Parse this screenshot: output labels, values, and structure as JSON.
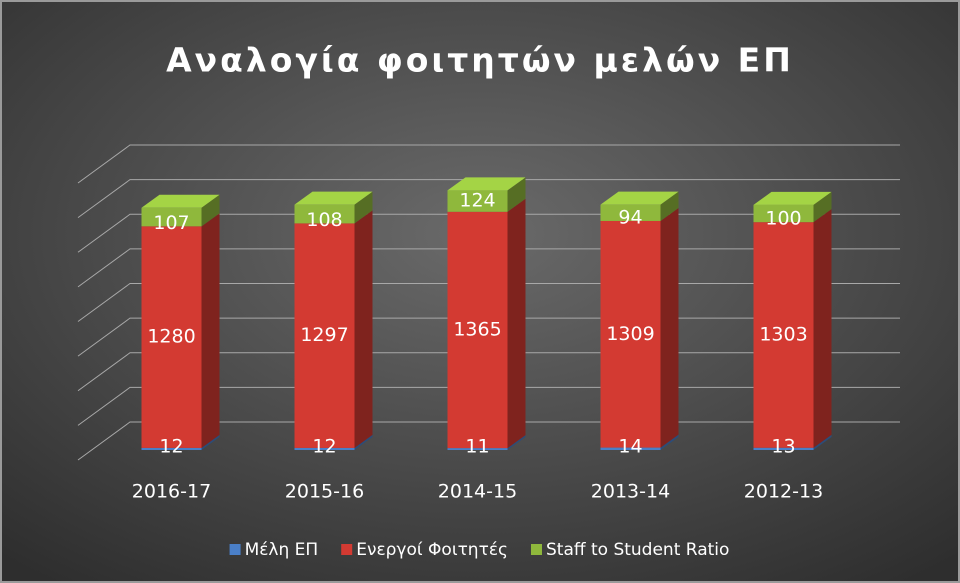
{
  "chart_data": {
    "type": "bar3d_stacked",
    "title": "Αναλογία φοιτητών μελών ΕΠ",
    "categories": [
      "2016-17",
      "2015-16",
      "2014-15",
      "2013-14",
      "2012-13"
    ],
    "series": [
      {
        "name": "Μέλη ΕΠ",
        "color": "#4a7fc8",
        "values": [
          12,
          12,
          11,
          14,
          13
        ]
      },
      {
        "name": "Ενεργοί Φοιτητές",
        "color": "#d33a32",
        "values": [
          1280,
          1297,
          1365,
          1309,
          1303
        ]
      },
      {
        "name": "Staff to Student Ratio",
        "color": "#8fb83c",
        "values": [
          107,
          108,
          124,
          94,
          100
        ]
      }
    ],
    "ylim": [
      0,
      1600
    ],
    "yticks": [
      0,
      200,
      400,
      600,
      800,
      1000,
      1200,
      1400,
      1600
    ],
    "grid": true,
    "legend": "bottom"
  }
}
